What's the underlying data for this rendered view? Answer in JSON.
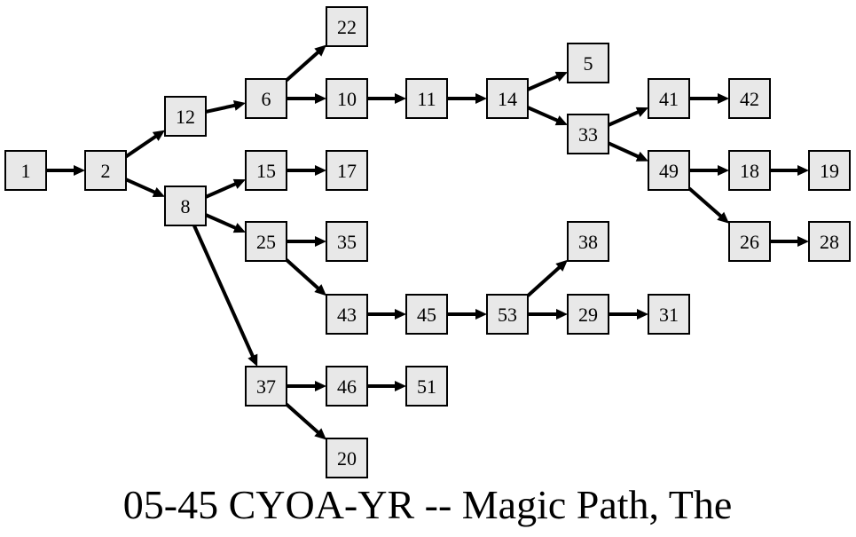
{
  "title": "05-45 CYOA-YR -- Magic Path, The",
  "colors": {
    "node_fill": "#e8e8e8",
    "node_stroke": "#000000",
    "edge": "#000000",
    "background": "#ffffff"
  },
  "nodes": [
    {
      "id": "1",
      "label": "1"
    },
    {
      "id": "2",
      "label": "2"
    },
    {
      "id": "12",
      "label": "12"
    },
    {
      "id": "8",
      "label": "8"
    },
    {
      "id": "6",
      "label": "6"
    },
    {
      "id": "15",
      "label": "15"
    },
    {
      "id": "25",
      "label": "25"
    },
    {
      "id": "37",
      "label": "37"
    },
    {
      "id": "22",
      "label": "22"
    },
    {
      "id": "10",
      "label": "10"
    },
    {
      "id": "17",
      "label": "17"
    },
    {
      "id": "35",
      "label": "35"
    },
    {
      "id": "43",
      "label": "43"
    },
    {
      "id": "46",
      "label": "46"
    },
    {
      "id": "20",
      "label": "20"
    },
    {
      "id": "11",
      "label": "11"
    },
    {
      "id": "45",
      "label": "45"
    },
    {
      "id": "51",
      "label": "51"
    },
    {
      "id": "14",
      "label": "14"
    },
    {
      "id": "53",
      "label": "53"
    },
    {
      "id": "5",
      "label": "5"
    },
    {
      "id": "33",
      "label": "33"
    },
    {
      "id": "38",
      "label": "38"
    },
    {
      "id": "29",
      "label": "29"
    },
    {
      "id": "41",
      "label": "41"
    },
    {
      "id": "49",
      "label": "49"
    },
    {
      "id": "31",
      "label": "31"
    },
    {
      "id": "42",
      "label": "42"
    },
    {
      "id": "18",
      "label": "18"
    },
    {
      "id": "26",
      "label": "26"
    },
    {
      "id": "19",
      "label": "19"
    },
    {
      "id": "28",
      "label": "28"
    }
  ],
  "edges": [
    [
      "1",
      "2"
    ],
    [
      "2",
      "12"
    ],
    [
      "2",
      "8"
    ],
    [
      "12",
      "6"
    ],
    [
      "6",
      "22"
    ],
    [
      "6",
      "10"
    ],
    [
      "8",
      "15"
    ],
    [
      "8",
      "25"
    ],
    [
      "8",
      "37"
    ],
    [
      "15",
      "17"
    ],
    [
      "25",
      "35"
    ],
    [
      "25",
      "43"
    ],
    [
      "37",
      "46"
    ],
    [
      "37",
      "20"
    ],
    [
      "10",
      "11"
    ],
    [
      "43",
      "45"
    ],
    [
      "46",
      "51"
    ],
    [
      "11",
      "14"
    ],
    [
      "45",
      "53"
    ],
    [
      "14",
      "5"
    ],
    [
      "14",
      "33"
    ],
    [
      "53",
      "38"
    ],
    [
      "53",
      "29"
    ],
    [
      "33",
      "41"
    ],
    [
      "33",
      "49"
    ],
    [
      "29",
      "31"
    ],
    [
      "41",
      "42"
    ],
    [
      "49",
      "18"
    ],
    [
      "49",
      "26"
    ],
    [
      "18",
      "19"
    ],
    [
      "26",
      "28"
    ]
  ]
}
